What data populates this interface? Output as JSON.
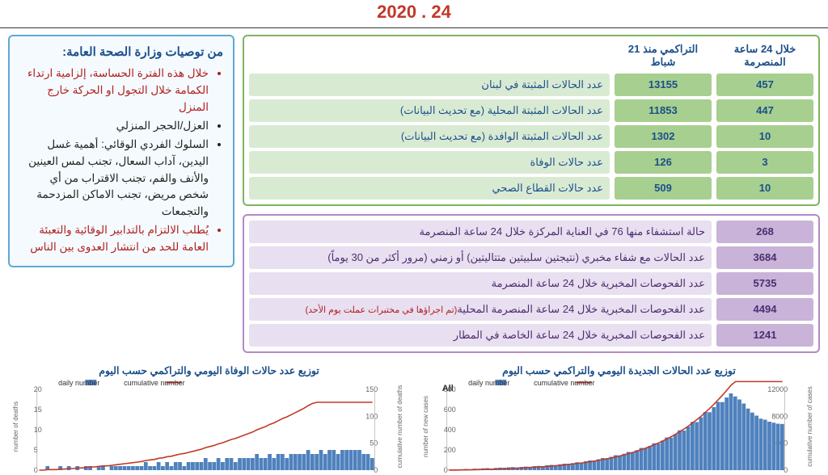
{
  "date_line": "24 . 2020",
  "recommendations": {
    "title": "من توصيات وزارة الصحة العامة:",
    "items": [
      {
        "text": "خلال هذه الفترة الحساسة، إلزامية ارتداء الكمامة خلال التجول او الحركة خارج المنزل",
        "color": "red"
      },
      {
        "text": "العزل/الحجر المنزلي",
        "color": "black"
      },
      {
        "text": "السلوك الفردي الوقائي: أهمية غسل اليدين، آداب السعال، تجنب لمس العينين والأنف والفم، تجنب الاقتراب من أي شخص مريض، تجنب الاماكن المزدحمة والتجمعات",
        "color": "black"
      },
      {
        "text": "يُطلب الالتزام بالتدابير الوقائية والتعبئة العامة للحد من انتشار العدوى بين الناس",
        "color": "red"
      }
    ]
  },
  "green_table": {
    "headers": {
      "h24": "خلال 24 ساعة المنصرمة",
      "cum": "التراكمي منذ 21 شباط"
    },
    "rows": [
      {
        "label": "عدد الحالات المثبتة في لبنان",
        "v24": "457",
        "cum": "13155"
      },
      {
        "label": "عدد الحالات المثبتة المحلية  (مع تحديث البيانات)",
        "v24": "447",
        "cum": "11853"
      },
      {
        "label": "عدد الحالات المثبتة الوافدة (مع تحديث البيانات)",
        "v24": "10",
        "cum": "1302"
      },
      {
        "label": "عدد حالات الوفاة",
        "v24": "3",
        "cum": "126"
      },
      {
        "label": "عدد حالات القطاع الصحي",
        "v24": "10",
        "cum": "509"
      }
    ]
  },
  "purple_table": {
    "rows": [
      {
        "label": "حالة استشفاء منها 76 في العناية المركزة خلال 24 ساعة المنصرمة",
        "val": "268"
      },
      {
        "label": "عدد الحالات مع شفاء مخبري (نتيجتين سلبيتين متتاليتين) أو زمني (مرور أكثر من 30 يوماً)",
        "val": "3684"
      },
      {
        "label": "عدد الفحوصات المخبرية خلال 24 ساعة المنصرمة",
        "val": "5735"
      },
      {
        "label_main": "عدد الفحوصات المخبرية خلال 24 ساعة المنصرمة المحلية",
        "label_note": "(تم اجراؤها في مختبرات عملت يوم الأحد)",
        "val": "4494"
      },
      {
        "label": "عدد الفحوصات المخبرية خلال 24 ساعة الخاصة في المطار",
        "val": "1241"
      }
    ]
  },
  "charts": {
    "cases": {
      "title": "توزيع عدد الحالات الجديدة اليومي والتراكمي حسب اليوم",
      "legend_daily": "daily number",
      "legend_cum": "cumulative number",
      "all_label": "All",
      "yl_left_ticks": [
        0,
        200,
        400,
        600,
        800
      ],
      "yl_right_ticks": [
        0,
        4000,
        8000,
        12000
      ],
      "bar_color": "#4f81bd",
      "line_color": "#c0392b",
      "bg": "#ffffff",
      "bars": [
        5,
        8,
        6,
        10,
        12,
        9,
        15,
        14,
        18,
        20,
        16,
        22,
        25,
        24,
        28,
        30,
        26,
        32,
        35,
        34,
        40,
        42,
        38,
        48,
        52,
        50,
        58,
        64,
        62,
        70,
        78,
        76,
        88,
        96,
        94,
        108,
        120,
        118,
        132,
        148,
        146,
        162,
        180,
        178,
        198,
        220,
        218,
        240,
        266,
        264,
        292,
        324,
        322,
        356,
        394,
        392,
        432,
        478,
        476,
        524,
        576,
        574,
        624,
        676,
        674,
        720,
        760,
        730,
        700,
        660,
        610,
        570,
        540,
        510,
        500,
        480,
        470,
        460,
        457
      ],
      "cum_max": 13155
    },
    "deaths": {
      "title": "توزيع عدد حالات  الوفاة اليومي والتراكمي حسب اليوم",
      "legend_daily": "daily number",
      "legend_cum": "cumulative number",
      "yl_left_ticks": [
        0,
        5,
        10,
        15,
        20
      ],
      "yl_right_ticks": [
        0,
        50,
        100,
        150
      ],
      "bar_color": "#4f81bd",
      "line_color": "#c0392b",
      "bg": "#ffffff",
      "bars": [
        0,
        0,
        1,
        0,
        0,
        1,
        0,
        1,
        0,
        1,
        0,
        1,
        1,
        0,
        1,
        1,
        0,
        1,
        1,
        1,
        1,
        1,
        1,
        1,
        1,
        2,
        1,
        1,
        2,
        1,
        2,
        1,
        2,
        2,
        1,
        2,
        2,
        2,
        2,
        3,
        2,
        2,
        3,
        2,
        3,
        3,
        2,
        3,
        3,
        3,
        3,
        4,
        3,
        3,
        4,
        3,
        4,
        4,
        3,
        4,
        4,
        4,
        4,
        5,
        4,
        4,
        5,
        4,
        5,
        5,
        4,
        5,
        5,
        5,
        5,
        5,
        4,
        4,
        3
      ],
      "cum_max": 126
    }
  },
  "colors": {
    "accent_blue": "#1b4f8a",
    "accent_red": "#c0392b",
    "green_dark": "#a7cf8f",
    "green_light": "#d9ead3",
    "purple_dark": "#c9b3d9",
    "purple_light": "#e8dff0"
  }
}
